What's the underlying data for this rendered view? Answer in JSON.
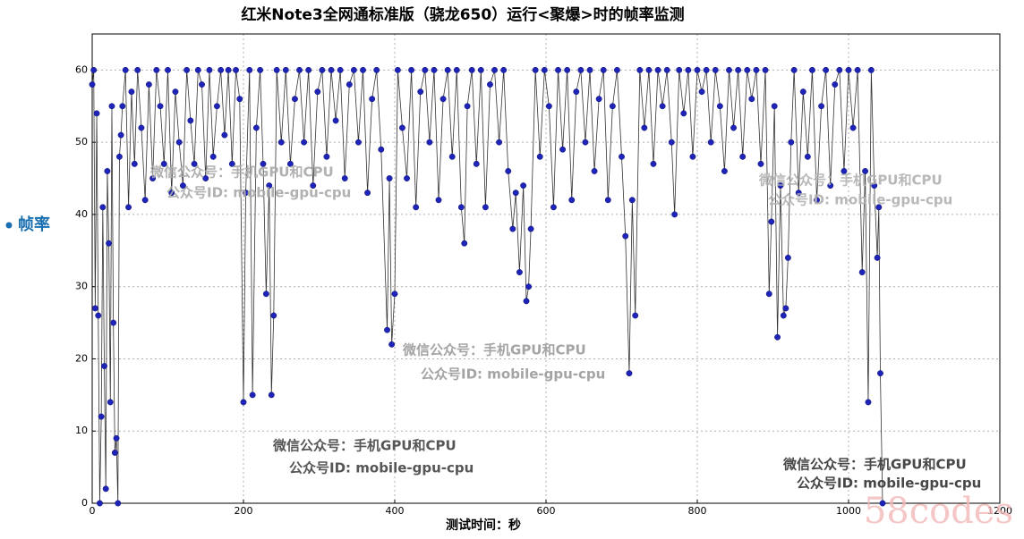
{
  "chart_data": {
    "type": "line",
    "title": "红米Note3全网通标准版（骁龙650）运行<聚爆>时的帧率监测",
    "xlabel": "测试时间：秒",
    "ylabel": "帧率",
    "annotations": [
      "微信公众号：手机GPU和CPU",
      "公众号ID: mobile-gpu-cpu",
      "微信公众号：手机GPU和CPU",
      "公众号ID: mobile-gpu-cpu",
      "微信公众号：手机GPU和CPU",
      "公众号ID: mobile-gpu-cpu",
      "微信公众号：手机GPU和CPU",
      "公众号ID: mobile-gpu-cpu",
      "微信公众号：手机GPU和CPU",
      "公众号ID: mobile-gpu-cpu",
      "58codes"
    ],
    "xlim": [
      0,
      1200
    ],
    "xticks": [
      0,
      200,
      400,
      600,
      800,
      1000,
      1200
    ],
    "ylim": [
      0,
      65
    ],
    "yticks": [
      0,
      10,
      20,
      30,
      40,
      50,
      60
    ],
    "grid": true,
    "line_color": "#333333",
    "marker_color": "#1f24b8",
    "x": [
      0,
      2,
      4,
      6,
      8,
      10,
      12,
      14,
      16,
      18,
      20,
      22,
      24,
      26,
      28,
      30,
      32,
      34,
      36,
      38,
      40,
      44,
      48,
      52,
      56,
      60,
      65,
      70,
      75,
      80,
      85,
      90,
      95,
      100,
      105,
      110,
      115,
      120,
      125,
      130,
      135,
      140,
      145,
      150,
      155,
      160,
      165,
      170,
      175,
      180,
      185,
      190,
      195,
      200,
      203,
      208,
      212,
      217,
      222,
      226,
      230,
      234,
      237,
      240,
      244,
      250,
      256,
      262,
      268,
      274,
      280,
      286,
      292,
      298,
      304,
      310,
      316,
      322,
      328,
      334,
      340,
      346,
      352,
      358,
      364,
      370,
      376,
      382,
      390,
      393,
      396,
      400,
      404,
      410,
      416,
      422,
      428,
      434,
      440,
      446,
      452,
      458,
      464,
      470,
      476,
      482,
      488,
      492,
      496,
      502,
      508,
      514,
      520,
      526,
      532,
      538,
      544,
      550,
      556,
      560,
      565,
      570,
      574,
      577,
      580,
      586,
      592,
      598,
      604,
      610,
      616,
      622,
      628,
      634,
      640,
      646,
      652,
      658,
      664,
      670,
      676,
      682,
      688,
      694,
      700,
      705,
      710,
      714,
      718,
      724,
      730,
      736,
      742,
      748,
      754,
      760,
      766,
      770,
      776,
      782,
      788,
      794,
      800,
      806,
      812,
      818,
      824,
      830,
      836,
      842,
      848,
      854,
      860,
      866,
      872,
      878,
      884,
      890,
      895,
      898,
      902,
      906,
      910,
      914,
      917,
      920,
      924,
      928,
      934,
      940,
      946,
      952,
      958,
      964,
      970,
      976,
      982,
      988,
      994,
      1000,
      1006,
      1012,
      1018,
      1022,
      1026,
      1030,
      1034,
      1038,
      1040,
      1042,
      1045
    ],
    "values": [
      58,
      60,
      27,
      54,
      26,
      0,
      12,
      41,
      19,
      2,
      46,
      36,
      14,
      55,
      25,
      7,
      9,
      0,
      48,
      51,
      55,
      60,
      41,
      57,
      47,
      60,
      52,
      42,
      58,
      45,
      60,
      55,
      47,
      60,
      43,
      57,
      50,
      44,
      60,
      53,
      47,
      60,
      58,
      45,
      60,
      48,
      55,
      60,
      51,
      60,
      47,
      60,
      56,
      14,
      43,
      60,
      15,
      52,
      60,
      47,
      29,
      44,
      15,
      26,
      60,
      50,
      60,
      47,
      56,
      60,
      50,
      60,
      44,
      57,
      60,
      48,
      60,
      53,
      60,
      45,
      58,
      60,
      50,
      60,
      43,
      56,
      60,
      49,
      24,
      45,
      22,
      29,
      60,
      52,
      45,
      60,
      41,
      57,
      60,
      50,
      60,
      42,
      56,
      60,
      48,
      60,
      41,
      36,
      55,
      60,
      47,
      60,
      41,
      58,
      60,
      50,
      60,
      46,
      38,
      43,
      32,
      44,
      28,
      30,
      38,
      60,
      48,
      60,
      55,
      41,
      60,
      49,
      60,
      42,
      57,
      60,
      50,
      60,
      46,
      56,
      60,
      42,
      55,
      60,
      48,
      37,
      18,
      42,
      26,
      60,
      52,
      60,
      47,
      60,
      55,
      60,
      50,
      40,
      60,
      54,
      60,
      48,
      60,
      57,
      60,
      50,
      60,
      55,
      46,
      60,
      52,
      60,
      48,
      60,
      56,
      60,
      47,
      60,
      29,
      39,
      55,
      23,
      44,
      26,
      27,
      34,
      50,
      60,
      43,
      57,
      48,
      60,
      42,
      55,
      60,
      44,
      58,
      60,
      46,
      60,
      52,
      60,
      32,
      46,
      14,
      60,
      44,
      34,
      41,
      18,
      0
    ]
  }
}
